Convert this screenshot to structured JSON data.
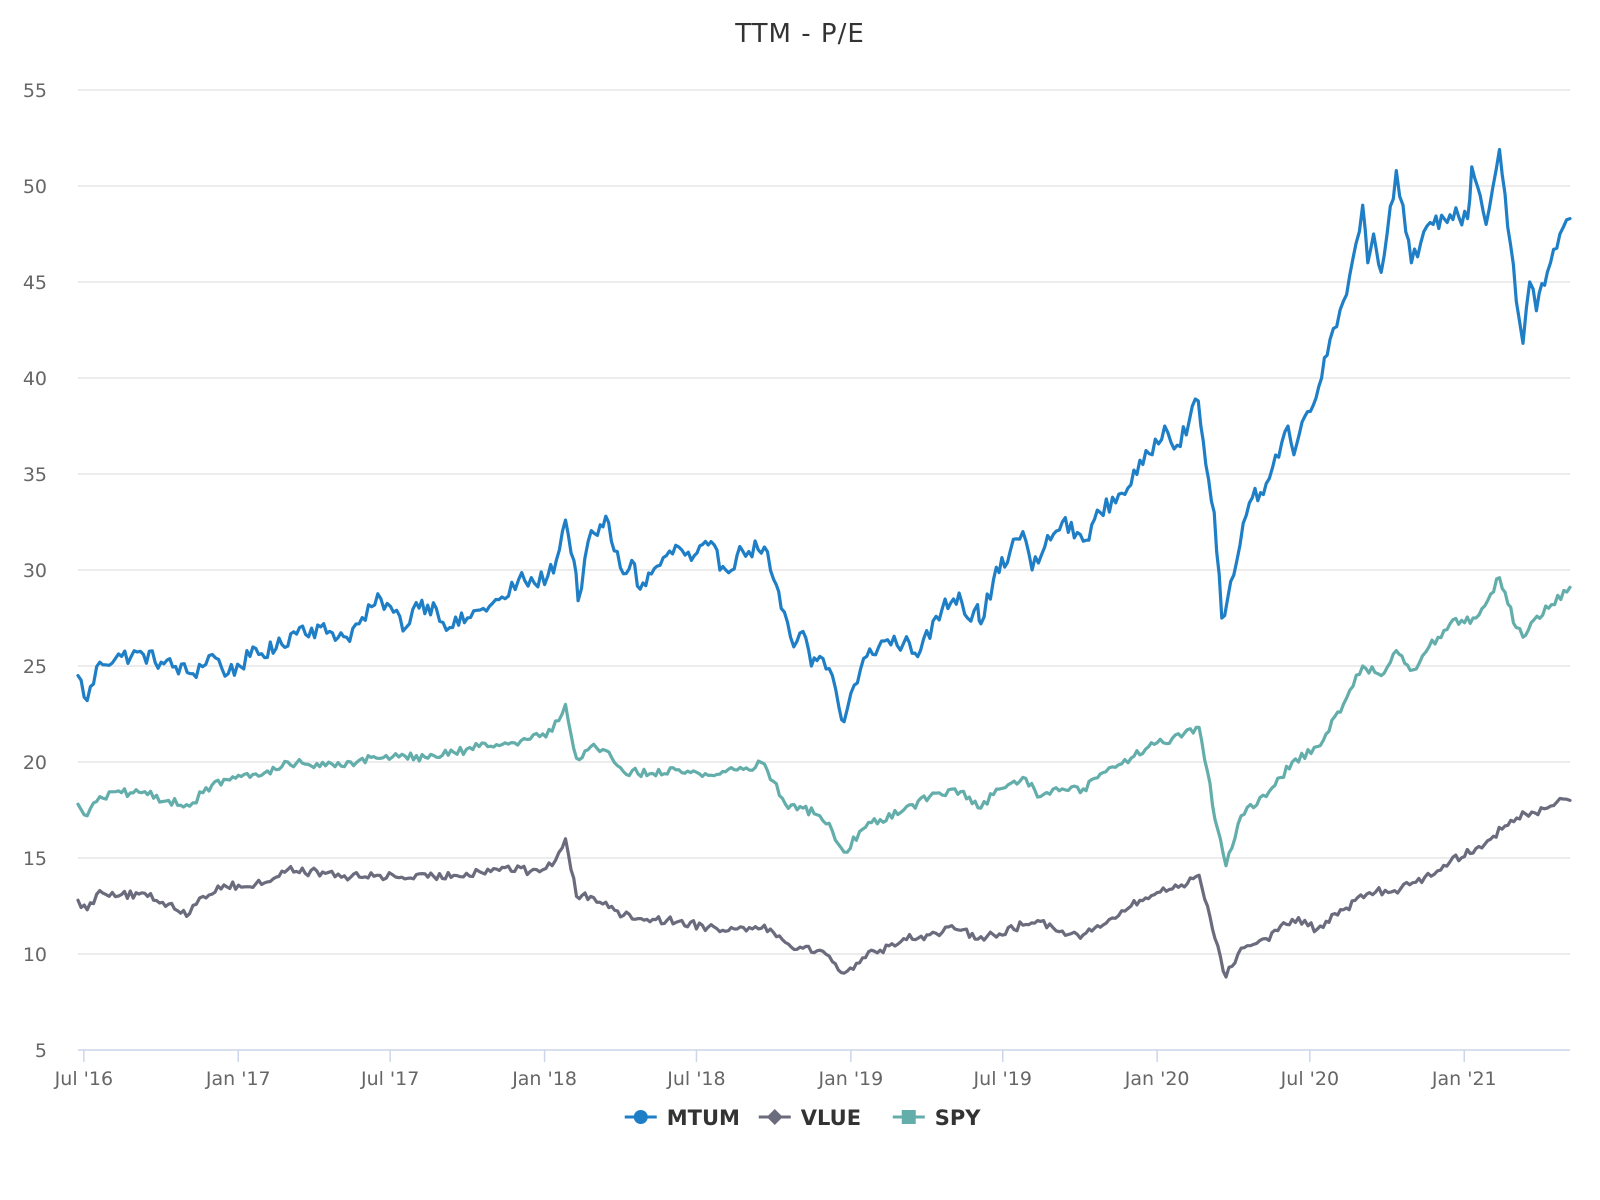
{
  "chart_data": {
    "type": "line",
    "title": "TTM - P/E",
    "xlabel": "",
    "ylabel": "",
    "ylim": [
      5,
      55
    ],
    "yticks": [
      5,
      10,
      15,
      20,
      25,
      30,
      35,
      40,
      45,
      50,
      55
    ],
    "xlim": [
      "2016-06-24",
      "2021-05-07"
    ],
    "xticks": [
      {
        "date": "2016-07-01",
        "label": "Jul '16"
      },
      {
        "date": "2017-01-01",
        "label": "Jan '17"
      },
      {
        "date": "2017-07-01",
        "label": "Jul '17"
      },
      {
        "date": "2018-01-01",
        "label": "Jan '18"
      },
      {
        "date": "2018-07-01",
        "label": "Jul '18"
      },
      {
        "date": "2019-01-01",
        "label": "Jan '19"
      },
      {
        "date": "2019-07-01",
        "label": "Jul '19"
      },
      {
        "date": "2020-01-01",
        "label": "Jan '20"
      },
      {
        "date": "2020-07-01",
        "label": "Jul '20"
      },
      {
        "date": "2021-01-01",
        "label": "Jan '21"
      }
    ],
    "grid": true,
    "legend_position": "bottom-center",
    "series": [
      {
        "name": "MTUM",
        "color": "#1f7fc6",
        "marker": "circle",
        "points": [
          [
            "2016-06-24",
            24.5
          ],
          [
            "2016-07-05",
            23.2
          ],
          [
            "2016-07-20",
            25.2
          ],
          [
            "2016-08-15",
            25.5
          ],
          [
            "2016-09-10",
            25.6
          ],
          [
            "2016-10-01",
            25.2
          ],
          [
            "2016-11-08",
            24.6
          ],
          [
            "2016-12-01",
            25.6
          ],
          [
            "2016-12-20",
            24.6
          ],
          [
            "2017-01-15",
            25.5
          ],
          [
            "2017-02-15",
            25.9
          ],
          [
            "2017-03-15",
            27.0
          ],
          [
            "2017-04-20",
            26.8
          ],
          [
            "2017-05-10",
            26.5
          ],
          [
            "2017-05-25",
            27.2
          ],
          [
            "2017-06-20",
            28.5
          ],
          [
            "2017-07-05",
            27.8
          ],
          [
            "2017-07-20",
            27.0
          ],
          [
            "2017-08-01",
            28.3
          ],
          [
            "2017-08-25",
            28.0
          ],
          [
            "2017-09-10",
            27.0
          ],
          [
            "2017-10-01",
            27.5
          ],
          [
            "2017-10-20",
            28.0
          ],
          [
            "2017-11-15",
            28.5
          ],
          [
            "2017-12-01",
            29.5
          ],
          [
            "2017-12-20",
            29.3
          ],
          [
            "2018-01-05",
            29.7
          ],
          [
            "2018-01-15",
            30.5
          ],
          [
            "2018-01-26",
            32.6
          ],
          [
            "2018-02-05",
            30.5
          ],
          [
            "2018-02-10",
            28.4
          ],
          [
            "2018-02-22",
            31.5
          ],
          [
            "2018-03-05",
            31.8
          ],
          [
            "2018-03-15",
            32.8
          ],
          [
            "2018-03-25",
            31.0
          ],
          [
            "2018-04-05",
            29.8
          ],
          [
            "2018-04-15",
            30.5
          ],
          [
            "2018-04-25",
            29.0
          ],
          [
            "2018-05-15",
            30.2
          ],
          [
            "2018-06-10",
            31.2
          ],
          [
            "2018-06-25",
            30.5
          ],
          [
            "2018-07-15",
            31.3
          ],
          [
            "2018-08-05",
            30.0
          ],
          [
            "2018-08-25",
            31.0
          ],
          [
            "2018-09-20",
            31.2
          ],
          [
            "2018-10-01",
            29.5
          ],
          [
            "2018-10-10",
            28.0
          ],
          [
            "2018-10-25",
            26.0
          ],
          [
            "2018-11-05",
            26.8
          ],
          [
            "2018-11-15",
            25.0
          ],
          [
            "2018-11-25",
            25.5
          ],
          [
            "2018-12-10",
            24.5
          ],
          [
            "2018-12-18",
            22.8
          ],
          [
            "2018-12-24",
            22.1
          ],
          [
            "2019-01-05",
            24.0
          ],
          [
            "2019-01-20",
            25.5
          ],
          [
            "2019-02-10",
            26.3
          ],
          [
            "2019-03-05",
            26.2
          ],
          [
            "2019-03-25",
            25.8
          ],
          [
            "2019-04-20",
            28.0
          ],
          [
            "2019-05-10",
            28.8
          ],
          [
            "2019-05-20",
            27.5
          ],
          [
            "2019-06-01",
            28.2
          ],
          [
            "2019-06-05",
            27.2
          ],
          [
            "2019-06-20",
            29.5
          ],
          [
            "2019-07-10",
            31.0
          ],
          [
            "2019-07-25",
            32.0
          ],
          [
            "2019-08-05",
            30.0
          ],
          [
            "2019-08-20",
            31.2
          ],
          [
            "2019-09-10",
            32.5
          ],
          [
            "2019-10-05",
            31.5
          ],
          [
            "2019-10-25",
            33.0
          ],
          [
            "2019-11-20",
            34.0
          ],
          [
            "2019-12-15",
            35.5
          ],
          [
            "2020-01-10",
            37.5
          ],
          [
            "2020-01-25",
            36.5
          ],
          [
            "2020-02-19",
            38.8
          ],
          [
            "2020-02-28",
            35.5
          ],
          [
            "2020-03-09",
            33.0
          ],
          [
            "2020-03-18",
            27.5
          ],
          [
            "2020-03-25",
            28.5
          ],
          [
            "2020-04-05",
            30.5
          ],
          [
            "2020-04-20",
            33.5
          ],
          [
            "2020-05-10",
            34.5
          ],
          [
            "2020-06-05",
            37.5
          ],
          [
            "2020-06-12",
            36.0
          ],
          [
            "2020-06-25",
            38.0
          ],
          [
            "2020-07-15",
            40.0
          ],
          [
            "2020-07-25",
            42.0
          ],
          [
            "2020-08-10",
            44.0
          ],
          [
            "2020-08-25",
            47.0
          ],
          [
            "2020-09-02",
            49.0
          ],
          [
            "2020-09-08",
            46.0
          ],
          [
            "2020-09-15",
            47.5
          ],
          [
            "2020-09-24",
            45.5
          ],
          [
            "2020-10-12",
            50.8
          ],
          [
            "2020-10-20",
            49.0
          ],
          [
            "2020-10-30",
            46.0
          ],
          [
            "2020-11-10",
            47.0
          ],
          [
            "2020-11-25",
            48.0
          ],
          [
            "2020-12-15",
            48.5
          ],
          [
            "2021-01-05",
            48.3
          ],
          [
            "2021-01-10",
            51.0
          ],
          [
            "2021-01-20",
            49.5
          ],
          [
            "2021-01-27",
            48.0
          ],
          [
            "2021-02-12",
            51.9
          ],
          [
            "2021-02-25",
            47.0
          ],
          [
            "2021-03-04",
            44.0
          ],
          [
            "2021-03-12",
            41.8
          ],
          [
            "2021-03-20",
            45.0
          ],
          [
            "2021-03-28",
            43.5
          ],
          [
            "2021-04-10",
            45.5
          ],
          [
            "2021-04-25",
            47.5
          ],
          [
            "2021-05-07",
            48.3
          ]
        ]
      },
      {
        "name": "VLUE",
        "color": "#6b6b7e",
        "marker": "diamond",
        "points": [
          [
            "2016-06-24",
            12.8
          ],
          [
            "2016-07-05",
            12.3
          ],
          [
            "2016-07-20",
            13.3
          ],
          [
            "2016-08-15",
            13.1
          ],
          [
            "2016-09-15",
            13.0
          ],
          [
            "2016-10-10",
            12.6
          ],
          [
            "2016-11-04",
            12.1
          ],
          [
            "2016-11-20",
            13.0
          ],
          [
            "2016-12-15",
            13.6
          ],
          [
            "2017-01-15",
            13.5
          ],
          [
            "2017-02-15",
            14.0
          ],
          [
            "2017-03-01",
            14.4
          ],
          [
            "2017-04-15",
            14.2
          ],
          [
            "2017-05-15",
            14.0
          ],
          [
            "2017-06-15",
            14.1
          ],
          [
            "2017-07-15",
            14.0
          ],
          [
            "2017-08-15",
            14.0
          ],
          [
            "2017-09-15",
            14.1
          ],
          [
            "2017-10-15",
            14.3
          ],
          [
            "2017-11-15",
            14.5
          ],
          [
            "2017-12-15",
            14.3
          ],
          [
            "2018-01-10",
            14.6
          ],
          [
            "2018-01-26",
            16.0
          ],
          [
            "2018-02-08",
            13.0
          ],
          [
            "2018-02-25",
            13.0
          ],
          [
            "2018-03-15",
            12.7
          ],
          [
            "2018-04-05",
            12.0
          ],
          [
            "2018-05-10",
            11.8
          ],
          [
            "2018-06-10",
            11.7
          ],
          [
            "2018-07-15",
            11.4
          ],
          [
            "2018-08-15",
            11.3
          ],
          [
            "2018-09-20",
            11.5
          ],
          [
            "2018-10-15",
            10.6
          ],
          [
            "2018-11-05",
            10.3
          ],
          [
            "2018-11-25",
            10.2
          ],
          [
            "2018-12-10",
            9.6
          ],
          [
            "2018-12-24",
            9.0
          ],
          [
            "2019-01-15",
            9.8
          ],
          [
            "2019-02-05",
            10.2
          ],
          [
            "2019-03-05",
            10.8
          ],
          [
            "2019-04-05",
            11.0
          ],
          [
            "2019-05-05",
            11.3
          ],
          [
            "2019-06-05",
            10.9
          ],
          [
            "2019-06-20",
            11.0
          ],
          [
            "2019-07-25",
            11.5
          ],
          [
            "2019-08-15",
            11.7
          ],
          [
            "2019-09-10",
            11.2
          ],
          [
            "2019-10-05",
            11.0
          ],
          [
            "2019-11-01",
            11.6
          ],
          [
            "2019-12-01",
            12.5
          ],
          [
            "2020-01-01",
            13.2
          ],
          [
            "2020-01-30",
            13.6
          ],
          [
            "2020-02-20",
            14.1
          ],
          [
            "2020-03-01",
            12.5
          ],
          [
            "2020-03-10",
            10.8
          ],
          [
            "2020-03-23",
            8.8
          ],
          [
            "2020-04-10",
            10.3
          ],
          [
            "2020-05-10",
            10.8
          ],
          [
            "2020-06-10",
            11.8
          ],
          [
            "2020-07-10",
            11.3
          ],
          [
            "2020-08-10",
            12.3
          ],
          [
            "2020-09-10",
            13.2
          ],
          [
            "2020-10-10",
            13.3
          ],
          [
            "2020-11-15",
            14.0
          ],
          [
            "2020-12-15",
            14.8
          ],
          [
            "2021-01-15",
            15.5
          ],
          [
            "2021-02-15",
            16.5
          ],
          [
            "2021-03-15",
            17.3
          ],
          [
            "2021-04-10",
            17.6
          ],
          [
            "2021-04-25",
            18.1
          ],
          [
            "2021-05-07",
            18.0
          ]
        ]
      },
      {
        "name": "SPY",
        "color": "#63aeab",
        "marker": "square",
        "points": [
          [
            "2016-06-24",
            17.8
          ],
          [
            "2016-07-05",
            17.2
          ],
          [
            "2016-07-20",
            18.2
          ],
          [
            "2016-08-15",
            18.4
          ],
          [
            "2016-09-15",
            18.3
          ],
          [
            "2016-10-10",
            18.0
          ],
          [
            "2016-11-04",
            17.7
          ],
          [
            "2016-11-20",
            18.4
          ],
          [
            "2016-12-15",
            19.1
          ],
          [
            "2017-01-15",
            19.2
          ],
          [
            "2017-02-15",
            19.6
          ],
          [
            "2017-03-01",
            20.0
          ],
          [
            "2017-04-15",
            19.8
          ],
          [
            "2017-05-15",
            20.0
          ],
          [
            "2017-06-15",
            20.2
          ],
          [
            "2017-07-15",
            20.4
          ],
          [
            "2017-08-15",
            20.2
          ],
          [
            "2017-09-15",
            20.5
          ],
          [
            "2017-10-15",
            20.8
          ],
          [
            "2017-11-15",
            21.0
          ],
          [
            "2017-12-15",
            21.2
          ],
          [
            "2018-01-10",
            21.6
          ],
          [
            "2018-01-26",
            23.0
          ],
          [
            "2018-02-08",
            20.2
          ],
          [
            "2018-02-25",
            20.8
          ],
          [
            "2018-03-15",
            20.6
          ],
          [
            "2018-04-05",
            19.5
          ],
          [
            "2018-05-10",
            19.4
          ],
          [
            "2018-06-10",
            19.6
          ],
          [
            "2018-07-15",
            19.3
          ],
          [
            "2018-08-15",
            19.6
          ],
          [
            "2018-09-20",
            19.9
          ],
          [
            "2018-10-15",
            17.8
          ],
          [
            "2018-11-05",
            17.6
          ],
          [
            "2018-11-25",
            17.2
          ],
          [
            "2018-12-10",
            16.4
          ],
          [
            "2018-12-24",
            15.3
          ],
          [
            "2019-01-15",
            16.5
          ],
          [
            "2019-02-05",
            17.0
          ],
          [
            "2019-03-05",
            17.5
          ],
          [
            "2019-04-05",
            18.2
          ],
          [
            "2019-05-05",
            18.6
          ],
          [
            "2019-06-05",
            17.6
          ],
          [
            "2019-06-20",
            18.3
          ],
          [
            "2019-07-25",
            19.2
          ],
          [
            "2019-08-15",
            18.2
          ],
          [
            "2019-09-10",
            18.6
          ],
          [
            "2019-10-05",
            18.6
          ],
          [
            "2019-11-01",
            19.5
          ],
          [
            "2019-12-01",
            20.2
          ],
          [
            "2020-01-01",
            21.0
          ],
          [
            "2020-01-30",
            21.3
          ],
          [
            "2020-02-20",
            21.8
          ],
          [
            "2020-03-01",
            19.5
          ],
          [
            "2020-03-10",
            17.0
          ],
          [
            "2020-03-23",
            14.6
          ],
          [
            "2020-04-10",
            17.2
          ],
          [
            "2020-05-10",
            18.2
          ],
          [
            "2020-06-10",
            20.0
          ],
          [
            "2020-07-10",
            20.8
          ],
          [
            "2020-08-10",
            23.0
          ],
          [
            "2020-09-02",
            25.0
          ],
          [
            "2020-09-24",
            24.5
          ],
          [
            "2020-10-12",
            25.8
          ],
          [
            "2020-11-01",
            24.8
          ],
          [
            "2020-11-20",
            26.0
          ],
          [
            "2020-12-15",
            27.2
          ],
          [
            "2021-01-15",
            27.5
          ],
          [
            "2021-02-12",
            29.6
          ],
          [
            "2021-03-04",
            27.0
          ],
          [
            "2021-03-12",
            26.5
          ],
          [
            "2021-03-25",
            27.4
          ],
          [
            "2021-04-15",
            28.2
          ],
          [
            "2021-05-07",
            29.1
          ]
        ]
      }
    ]
  }
}
